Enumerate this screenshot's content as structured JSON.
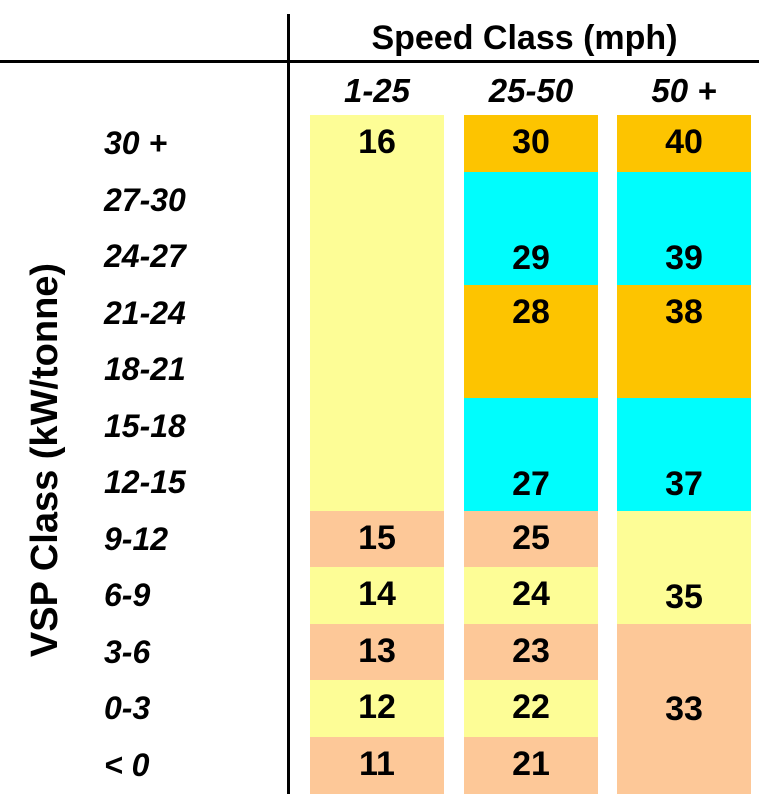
{
  "colors": {
    "yellow": "#fdfd96",
    "orange": "#fdc400",
    "cyan": "#00fdfd",
    "peach": "#fdc898"
  },
  "column_axis_label": "Speed Class (mph)",
  "row_axis_label": "VSP Class (kW/tonne)",
  "speed_classes": [
    "1-25",
    "25-50",
    "50 +"
  ],
  "vsp_classes": [
    "30 +",
    "27-30",
    "24-27",
    "21-24",
    "18-21",
    "15-18",
    "12-15",
    "9-12",
    "6-9",
    "3-6",
    "0-3",
    "< 0"
  ],
  "bins": [
    {
      "col": 0,
      "row_start": 0,
      "row_span": 7,
      "label": "16",
      "color": "yellow"
    },
    {
      "col": 0,
      "row_start": 7,
      "row_span": 1,
      "label": "15",
      "color": "peach"
    },
    {
      "col": 0,
      "row_start": 8,
      "row_span": 1,
      "label": "14",
      "color": "yellow"
    },
    {
      "col": 0,
      "row_start": 9,
      "row_span": 1,
      "label": "13",
      "color": "peach"
    },
    {
      "col": 0,
      "row_start": 10,
      "row_span": 1,
      "label": "12",
      "color": "yellow"
    },
    {
      "col": 0,
      "row_start": 11,
      "row_span": 1,
      "label": "11",
      "color": "peach"
    },
    {
      "col": 1,
      "row_start": 0,
      "row_span": 1,
      "label": "30",
      "color": "orange"
    },
    {
      "col": 1,
      "row_start": 1,
      "row_span": 2,
      "label": "29",
      "color": "cyan"
    },
    {
      "col": 1,
      "row_start": 3,
      "row_span": 2,
      "label": "28",
      "color": "orange"
    },
    {
      "col": 1,
      "row_start": 5,
      "row_span": 2,
      "label": "27",
      "color": "cyan"
    },
    {
      "col": 1,
      "row_start": 7,
      "row_span": 1,
      "label": "25",
      "color": "peach"
    },
    {
      "col": 1,
      "row_start": 8,
      "row_span": 1,
      "label": "24",
      "color": "yellow"
    },
    {
      "col": 1,
      "row_start": 9,
      "row_span": 1,
      "label": "23",
      "color": "peach"
    },
    {
      "col": 1,
      "row_start": 10,
      "row_span": 1,
      "label": "22",
      "color": "yellow"
    },
    {
      "col": 1,
      "row_start": 11,
      "row_span": 1,
      "label": "21",
      "color": "peach"
    },
    {
      "col": 2,
      "row_start": 0,
      "row_span": 1,
      "label": "40",
      "color": "orange"
    },
    {
      "col": 2,
      "row_start": 1,
      "row_span": 2,
      "label": "39",
      "color": "cyan"
    },
    {
      "col": 2,
      "row_start": 3,
      "row_span": 2,
      "label": "38",
      "color": "orange"
    },
    {
      "col": 2,
      "row_start": 5,
      "row_span": 2,
      "label": "37",
      "color": "cyan"
    },
    {
      "col": 2,
      "row_start": 7,
      "row_span": 2,
      "label": "35",
      "color": "yellow"
    },
    {
      "col": 2,
      "row_start": 9,
      "row_span": 3,
      "label": "33",
      "color": "peach"
    }
  ]
}
